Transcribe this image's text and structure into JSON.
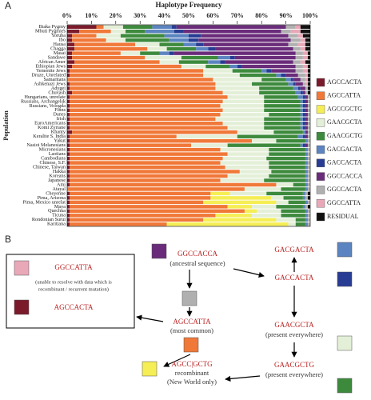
{
  "panel_labels": [
    "A",
    "B"
  ],
  "chart_data": {
    "type": "bar",
    "orientation": "horizontal",
    "stacked": true,
    "title": "Haplotype Frequency",
    "y_label": "Population",
    "categories": [
      "Biaka Pygmy",
      "Mbuti Pygmies",
      "Yoruba",
      "Ibo",
      "Hausa",
      "Chagga",
      "Masai",
      "Sandawe",
      "African Amer",
      "Ethiopian Jews",
      "Yemenite Jews",
      "Druze, Unrelated",
      "Samaritans",
      "Ashkenazi Jews",
      "Adygei",
      "Chuvash",
      "Hungarians, unrelate",
      "Russians, Archangelsk",
      "Russians, Vologda",
      "Finns",
      "Danes",
      "Irish",
      "EuroAmericans",
      "Komi Zyriane",
      "Khanty",
      "Keralite S. India",
      "Yakut",
      "Nasioi Melanesians",
      "Micronesians",
      "Laotians",
      "Cambodians",
      "Chinese, S.F.",
      "Chinese, Taiwan",
      "Hakka",
      "Koreans",
      "Japanese",
      "Ami",
      "Atayal",
      "Cheyenne",
      "Pima, Arizona",
      "Pima, Mexico unrelat",
      "Maya",
      "Quechua",
      "Ticuna",
      "Rondonian Surui",
      "Karitiana"
    ],
    "xlim": [
      0,
      100
    ],
    "xticks": [
      {
        "value": 0,
        "label": "0%"
      },
      {
        "value": 10,
        "label": "10%"
      },
      {
        "value": 20,
        "label": "20%"
      },
      {
        "value": 30,
        "label": "30%"
      },
      {
        "value": 40,
        "label": "40%"
      },
      {
        "value": 50,
        "label": "50%"
      },
      {
        "value": 60,
        "label": "60%"
      },
      {
        "value": 70,
        "label": "70%"
      },
      {
        "value": 80,
        "label": "80%"
      },
      {
        "value": 90,
        "label": "90%"
      },
      {
        "value": 100,
        "label": "100%"
      }
    ],
    "series": [
      {
        "name": "AGCCACTA",
        "color": "#7a1a2a",
        "values": [
          12,
          5,
          2,
          2,
          3,
          3,
          2,
          2,
          3,
          2,
          1,
          1,
          0,
          1,
          1,
          2,
          1,
          1,
          1,
          1,
          1,
          1,
          1,
          1,
          2,
          1,
          1,
          1,
          1,
          1,
          1,
          1,
          1,
          1,
          1,
          1,
          1,
          0,
          1,
          1,
          1,
          1,
          1,
          1,
          1,
          1
        ]
      },
      {
        "name": "AGCCATTA",
        "color": "#f07838",
        "values": [
          3,
          13,
          10,
          14,
          25,
          30,
          20,
          30,
          35,
          45,
          55,
          55,
          60,
          60,
          60,
          62,
          65,
          63,
          62,
          63,
          62,
          60,
          63,
          65,
          68,
          44,
          75,
          50,
          62,
          65,
          63,
          62,
          64,
          70,
          65,
          62,
          85,
          73,
          58,
          58,
          55,
          65,
          72,
          60,
          55,
          40
        ]
      },
      {
        "name": "AGCCGCTG",
        "color": "#f5ee55",
        "values": [
          0,
          0,
          0,
          0,
          0,
          0,
          0,
          0,
          0,
          0,
          0,
          0,
          0,
          0,
          0,
          0,
          0,
          0,
          0,
          0,
          0,
          0,
          0,
          0,
          0,
          0,
          0,
          0,
          0,
          0,
          0,
          0,
          0,
          0,
          0,
          0,
          0,
          0,
          8,
          25,
          30,
          10,
          5,
          15,
          30,
          50
        ]
      },
      {
        "name": "GAACGCTA",
        "color": "#e4efd8",
        "values": [
          8,
          6,
          10,
          8,
          10,
          8,
          8,
          15,
          8,
          10,
          12,
          15,
          20,
          15,
          18,
          15,
          15,
          17,
          18,
          17,
          20,
          20,
          17,
          15,
          15,
          25,
          10,
          15,
          20,
          17,
          18,
          20,
          18,
          13,
          17,
          18,
          7,
          15,
          15,
          5,
          5,
          10,
          10,
          12,
          8,
          3
        ]
      },
      {
        "name": "GAACGCTG",
        "color": "#3d8a3d",
        "values": [
          12,
          8,
          18,
          18,
          10,
          12,
          8,
          15,
          12,
          10,
          12,
          15,
          10,
          15,
          14,
          15,
          14,
          15,
          15,
          15,
          13,
          15,
          15,
          15,
          12,
          25,
          12,
          30,
          15,
          15,
          16,
          15,
          15,
          14,
          15,
          17,
          5,
          10,
          15,
          8,
          7,
          11,
          10,
          10,
          4,
          4
        ]
      },
      {
        "name": "GACGACTA",
        "color": "#5b84c0",
        "values": [
          8,
          12,
          10,
          8,
          5,
          5,
          4,
          5,
          5,
          3,
          2,
          2,
          2,
          2,
          2,
          2,
          2,
          1,
          1,
          1,
          1,
          1,
          1,
          1,
          1,
          2,
          1,
          1,
          1,
          1,
          1,
          1,
          1,
          1,
          1,
          1,
          1,
          1,
          1,
          1,
          1,
          1,
          1,
          1,
          1,
          1
        ]
      },
      {
        "name": "GACCACTA",
        "color": "#283c94",
        "values": [
          2,
          4,
          5,
          4,
          3,
          3,
          2,
          2,
          2,
          2,
          2,
          2,
          1,
          1,
          1,
          1,
          1,
          1,
          1,
          1,
          1,
          1,
          1,
          1,
          0,
          1,
          0,
          1,
          0,
          0,
          0,
          0,
          0,
          0,
          0,
          0,
          0,
          0,
          0,
          0,
          0,
          0,
          0,
          0,
          0,
          0
        ]
      },
      {
        "name": "GGCCACCA",
        "color": "#6a2c7a",
        "values": [
          45,
          40,
          36,
          38,
          35,
          32,
          50,
          25,
          28,
          22,
          10,
          5,
          3,
          3,
          2,
          1,
          1,
          1,
          1,
          1,
          1,
          1,
          1,
          1,
          1,
          1,
          0,
          1,
          0,
          0,
          0,
          0,
          0,
          0,
          0,
          0,
          0,
          0,
          0,
          0,
          0,
          0,
          0,
          0,
          0,
          0
        ]
      },
      {
        "name": "GGCCACTA",
        "color": "#b0b0b0",
        "values": [
          4,
          4,
          4,
          4,
          4,
          3,
          3,
          3,
          3,
          3,
          3,
          3,
          2,
          1,
          1,
          1,
          1,
          1,
          1,
          1,
          1,
          1,
          1,
          1,
          1,
          1,
          1,
          1,
          1,
          1,
          1,
          1,
          1,
          1,
          1,
          1,
          1,
          1,
          1,
          1,
          1,
          1,
          1,
          1,
          1,
          1
        ]
      },
      {
        "name": "GGCCATTA",
        "color": "#e8a8b8",
        "values": [
          2,
          4,
          2,
          2,
          3,
          2,
          2,
          2,
          2,
          2,
          2,
          1,
          1,
          1,
          0,
          0,
          0,
          0,
          0,
          0,
          0,
          0,
          0,
          0,
          0,
          0,
          0,
          0,
          0,
          0,
          0,
          0,
          0,
          0,
          0,
          0,
          0,
          0,
          0,
          0,
          0,
          0,
          0,
          0,
          0,
          0
        ]
      },
      {
        "name": "RESIDUAL",
        "color": "#111111",
        "values": [
          4,
          4,
          3,
          2,
          2,
          2,
          1,
          1,
          2,
          1,
          1,
          1,
          1,
          1,
          1,
          1,
          0,
          0,
          0,
          0,
          0,
          0,
          0,
          0,
          0,
          0,
          0,
          0,
          0,
          0,
          0,
          0,
          0,
          0,
          0,
          0,
          0,
          0,
          1,
          1,
          0,
          1,
          0,
          0,
          0,
          0
        ]
      }
    ]
  },
  "diagram": {
    "nodes": [
      {
        "label": "GGCCACCA",
        "caption": [
          "(ancestral sequence)"
        ]
      },
      {
        "label": "GACGACTA"
      },
      {
        "label": "GACCACTA"
      },
      {
        "label": "GAACGCTA",
        "caption": [
          "(present everywhere)"
        ]
      },
      {
        "label": "GAACGCTG",
        "caption": [
          "(present everywhere)"
        ]
      },
      {
        "label": "AGCCATTA",
        "caption": [
          "(most common)"
        ]
      },
      {
        "label": "AGCC|GCTG",
        "caption": [
          "recombinant",
          "(New World only)"
        ]
      },
      {
        "label": "GGCCATTA",
        "caption": [
          "(unable to resolve with data which is",
          "recombinant / recurrent mutation)"
        ]
      },
      {
        "label": "AGCCACTA"
      }
    ]
  }
}
